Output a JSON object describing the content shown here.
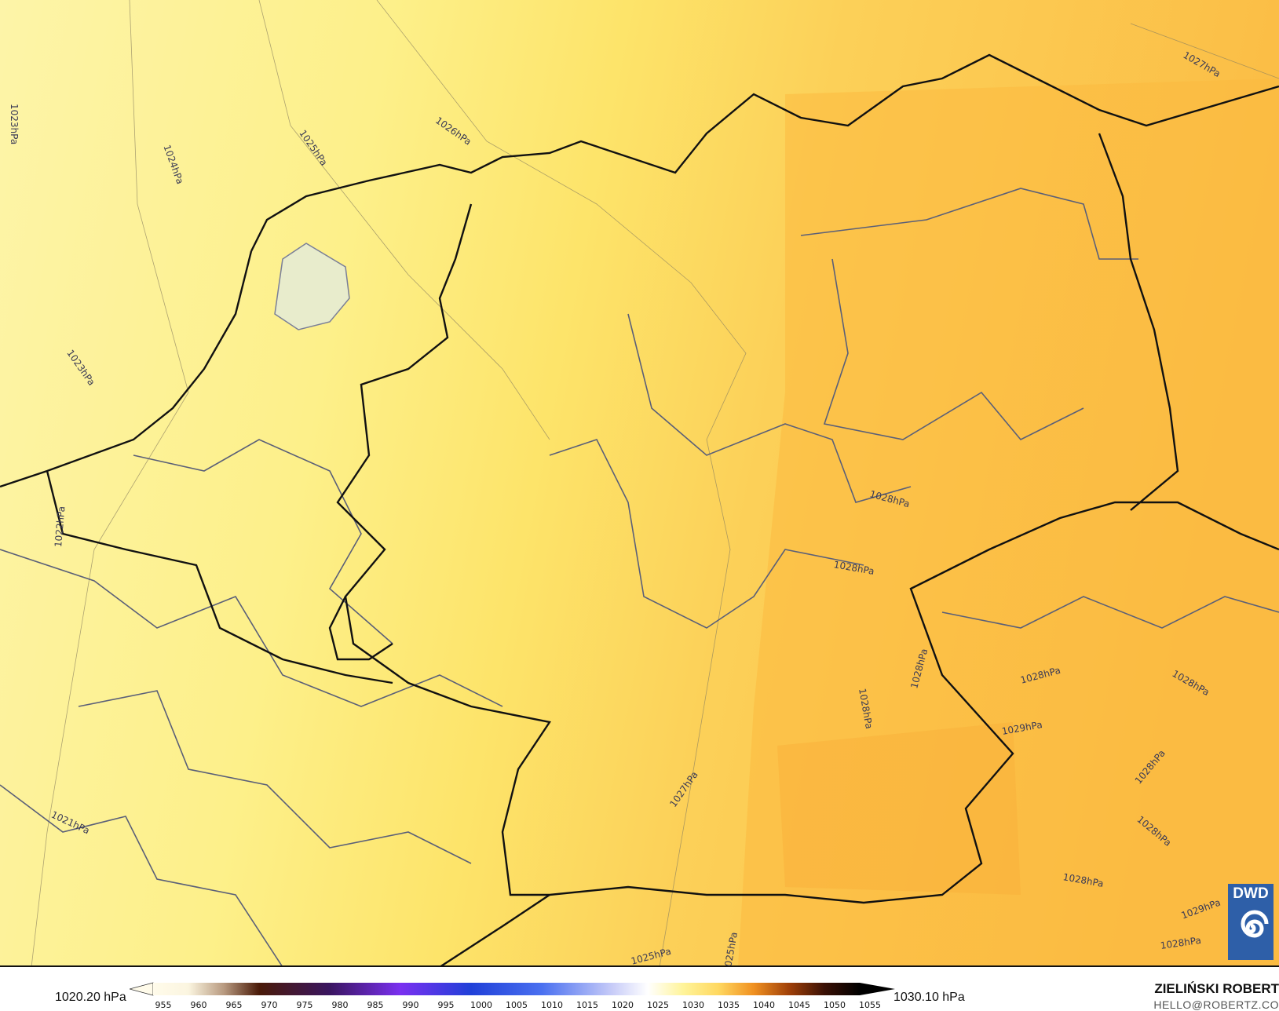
{
  "map": {
    "field": "mean sea level pressure",
    "colors": {
      "west": "#fdf3a3",
      "center": "#fde870",
      "east": "#fbbd45",
      "coast": "#111111",
      "borders": "#5a5f78"
    },
    "contour_labels": [
      "1023hPa",
      "1024hPa",
      "1025hPa",
      "1026hPa",
      "1027hPa",
      "1023hPa",
      "1022hPa",
      "1021hPa",
      "1028hPa",
      "1028hPa",
      "1028hPa",
      "1028hPa",
      "1028hPa",
      "1029hPa",
      "1028hPa",
      "1027hPa",
      "1025hPa",
      "1025hPa",
      "1028hPa",
      "1028hPa",
      "1029hPa",
      "1028hPa",
      "1028hPa"
    ]
  },
  "legend": {
    "min_label": "1020.20 hPa",
    "max_label": "1030.10 hPa",
    "ticks": [
      "955",
      "960",
      "965",
      "970",
      "975",
      "980",
      "985",
      "990",
      "995",
      "1000",
      "1005",
      "1010",
      "1015",
      "1020",
      "1025",
      "1030",
      "1035",
      "1040",
      "1045",
      "1050",
      "1055"
    ]
  },
  "credits": {
    "author": "ZIELIŃSKI ROBERT",
    "email": "HELLO@ROBERTZ.CO",
    "logo_text": "DWD"
  }
}
